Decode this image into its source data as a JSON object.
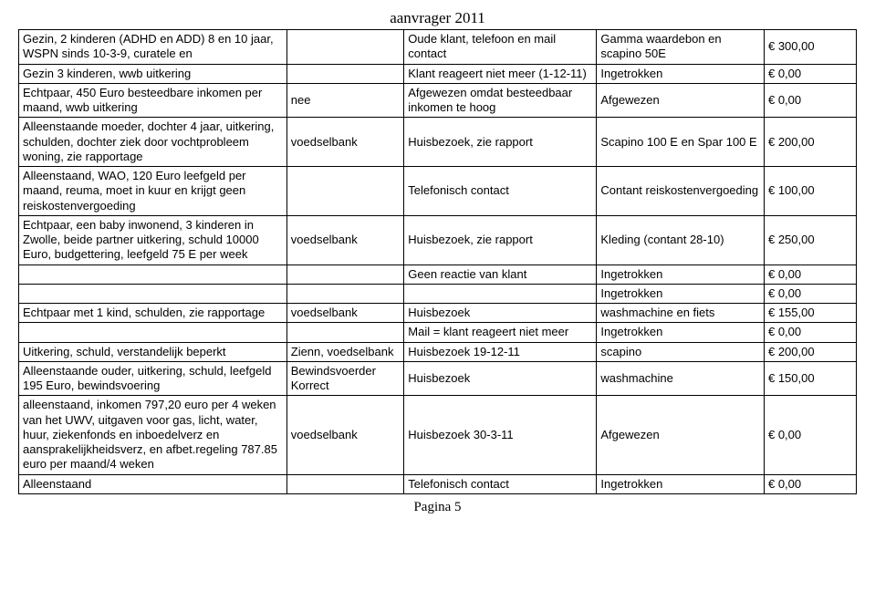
{
  "header": "aanvrager 2011",
  "footer": "Pagina 5",
  "rows": [
    {
      "c1": "Gezin, 2 kinderen (ADHD en ADD) 8 en 10 jaar, WSPN sinds 10-3-9, curatele en",
      "c2": "",
      "c3": "Oude klant, telefoon en mail contact",
      "c4": "Gamma waardebon en scapino 50E",
      "c5": "€ 300,00"
    },
    {
      "c1": "Gezin 3 kinderen, wwb uitkering",
      "c2": "",
      "c3": "Klant reageert niet meer (1-12-11)",
      "c4": "Ingetrokken",
      "c5": "€ 0,00"
    },
    {
      "c1": "Echtpaar, 450 Euro besteedbare inkomen per maand, wwb uitkering",
      "c2": "nee",
      "c3": "Afgewezen omdat besteedbaar inkomen te hoog",
      "c4": "Afgewezen",
      "c5": "€ 0,00"
    },
    {
      "c1": "Alleenstaande moeder, dochter 4 jaar, uitkering, schulden, dochter ziek door vochtprobleem woning, zie rapportage",
      "c2": "voedselbank",
      "c3": "Huisbezoek, zie rapport",
      "c4": "Scapino 100 E en Spar 100 E",
      "c5": "€ 200,00"
    },
    {
      "c1": "Alleenstaand, WAO, 120 Euro leefgeld per maand, reuma, moet in kuur en krijgt geen reiskostenvergoeding",
      "c2": "",
      "c3": "Telefonisch contact",
      "c4": "Contant reiskostenvergoeding",
      "c5": "€ 100,00"
    },
    {
      "c1": "Echtpaar, een baby inwonend, 3 kinderen in Zwolle, beide partner uitkering, schuld 10000 Euro, budgettering, leefgeld 75 E per week",
      "c2": "voedselbank",
      "c3": "Huisbezoek, zie rapport",
      "c4": "Kleding (contant 28-10)",
      "c5": "€ 250,00"
    },
    {
      "c1": "",
      "c2": "",
      "c3": "Geen reactie van klant",
      "c4": "Ingetrokken",
      "c5": "€ 0,00"
    },
    {
      "c1": "",
      "c2": "",
      "c3": "",
      "c4": "Ingetrokken",
      "c5": "€ 0,00"
    },
    {
      "c1": "Echtpaar met 1 kind, schulden, zie rapportage",
      "c2": "voedselbank",
      "c3": "Huisbezoek",
      "c4": "washmachine en fiets",
      "c5": "€ 155,00"
    },
    {
      "c1": "",
      "c2": "",
      "c3": "Mail = klant reageert niet meer",
      "c4": "Ingetrokken",
      "c5": "€ 0,00"
    },
    {
      "c1": "Uitkering, schuld, verstandelijk beperkt",
      "c2": "Zienn, voedselbank",
      "c3": "Huisbezoek 19-12-11",
      "c4": "scapino",
      "c5": "€ 200,00"
    },
    {
      "c1": "Alleenstaande ouder, uitkering, schuld, leefgeld 195 Euro, bewindsvoering",
      "c2": "Bewindsvoerder Korrect",
      "c3": "Huisbezoek",
      "c4": "washmachine",
      "c5": "€ 150,00"
    },
    {
      "c1": "alleenstaand, inkomen 797,20 euro per 4 weken van het UWV, uitgaven voor gas, licht, water, huur, ziekenfonds en inboedelverz en aansprakelijkheidsverz, en afbet.regeling 787.85 euro per maand/4 weken",
      "c2": "voedselbank",
      "c3": "Huisbezoek 30-3-11",
      "c4": "Afgewezen",
      "c5": "€ 0,00"
    },
    {
      "c1": "Alleenstaand",
      "c2": "",
      "c3": "Telefonisch contact",
      "c4": "Ingetrokken",
      "c5": "€ 0,00"
    }
  ]
}
